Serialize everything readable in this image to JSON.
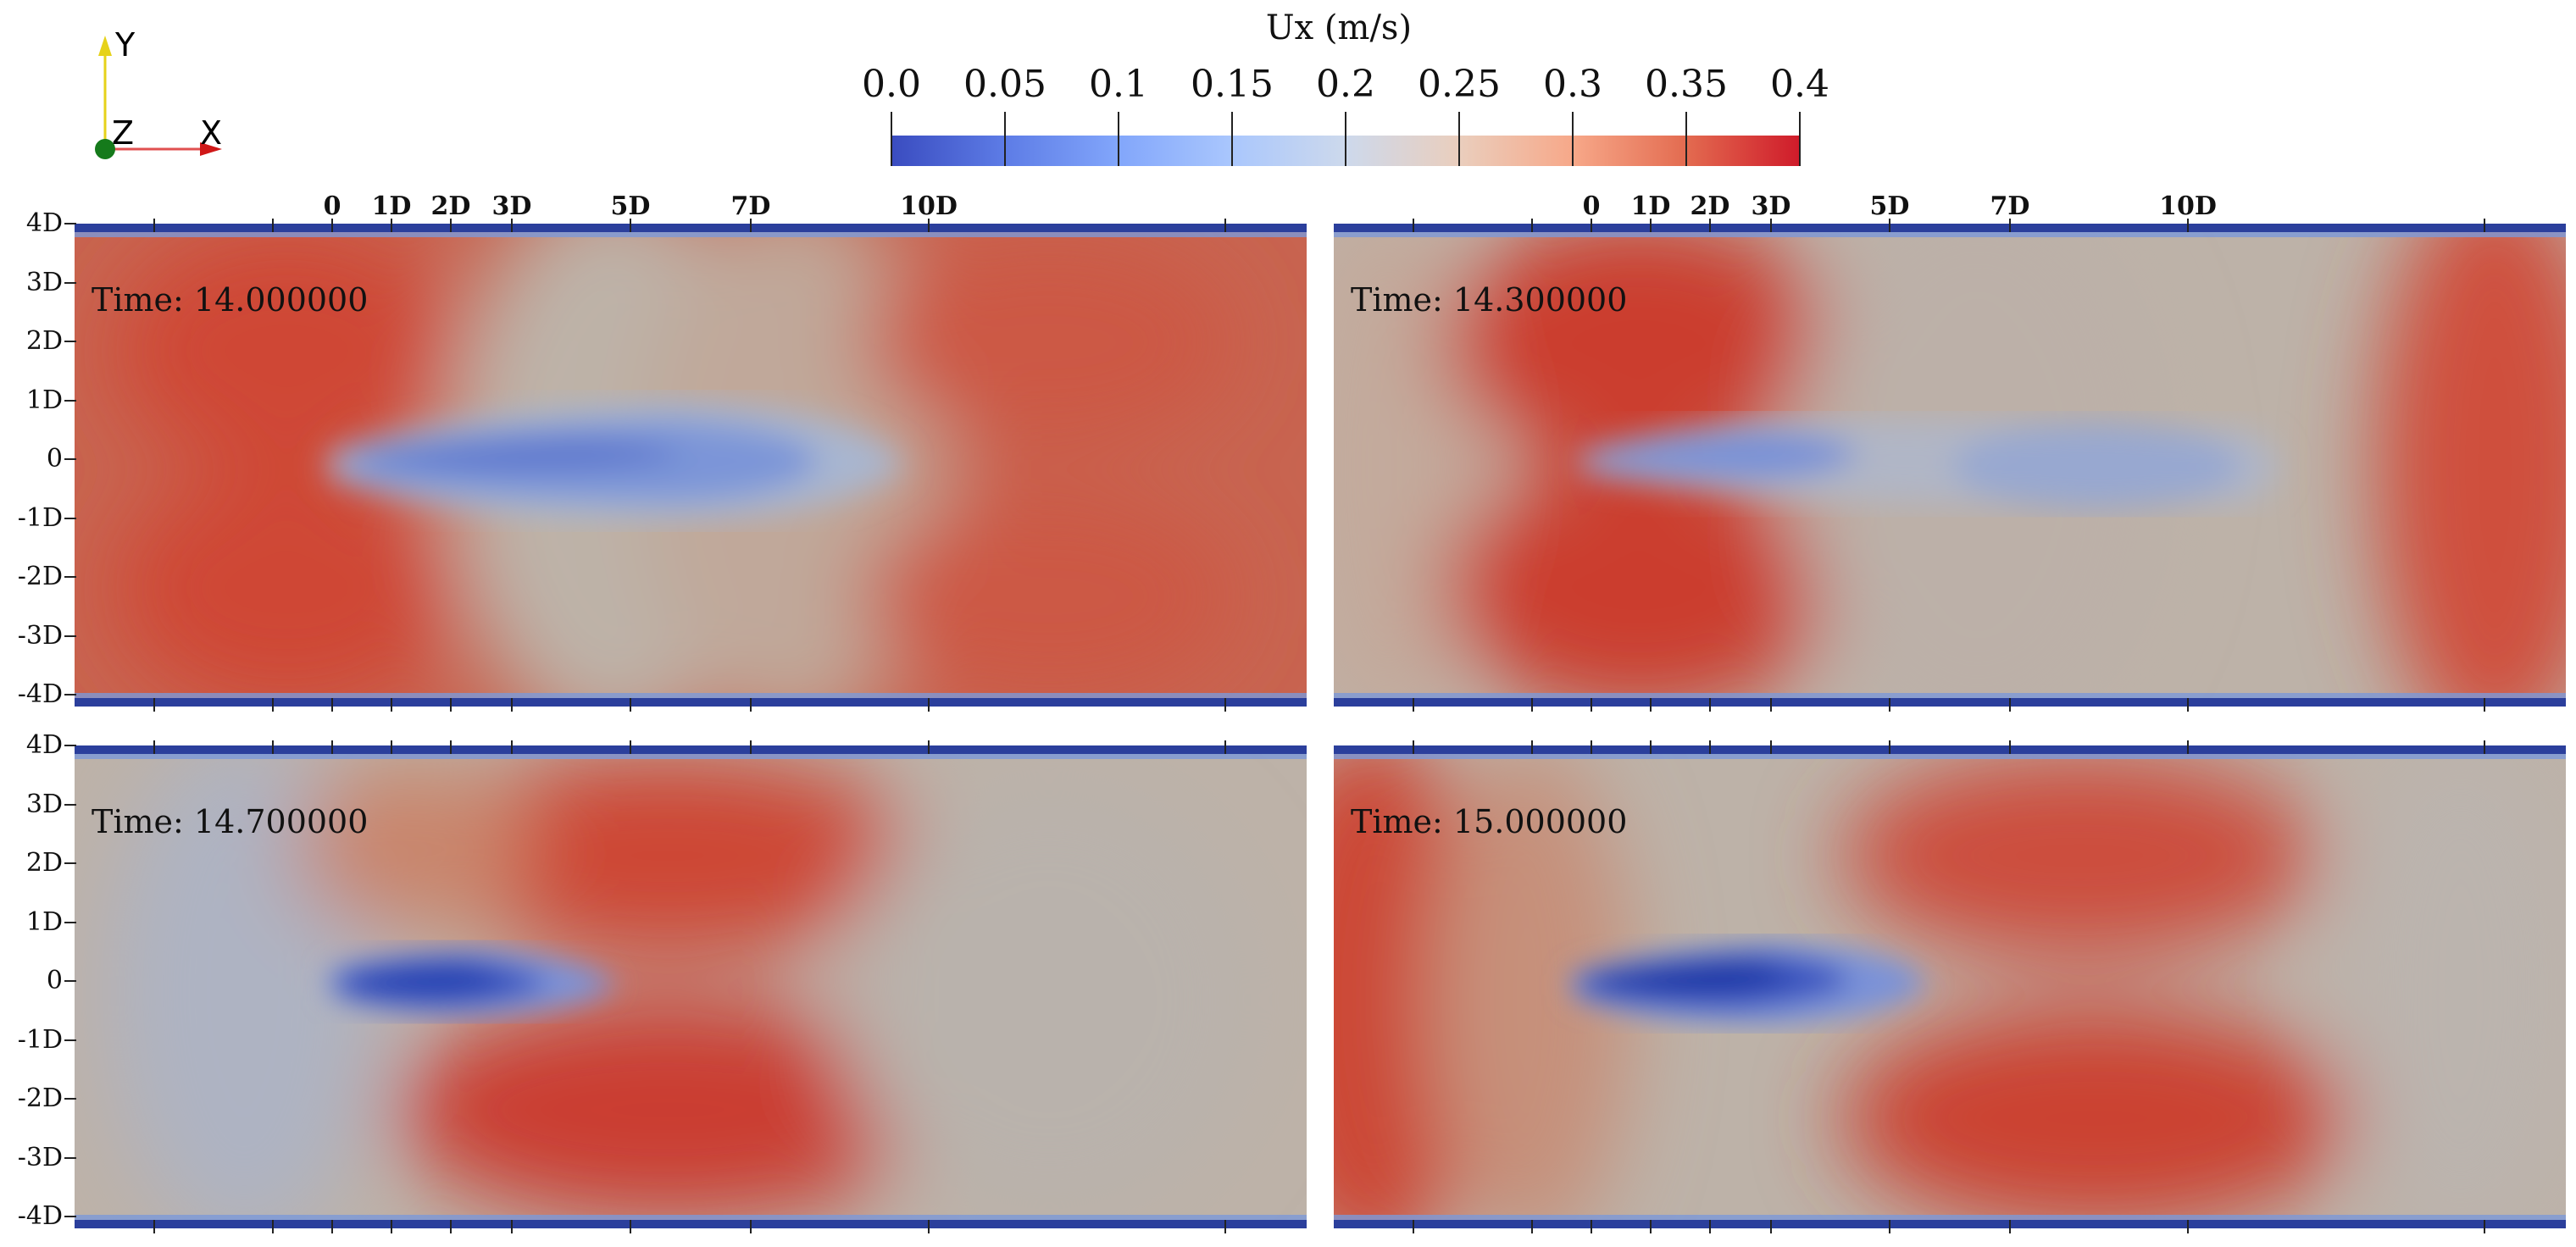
{
  "colorbar": {
    "title": "Ux (m/s)",
    "ticks": [
      "0.0",
      "0.05",
      "0.1",
      "0.15",
      "0.2",
      "0.25",
      "0.3",
      "0.35",
      "0.4"
    ],
    "range": [
      0.0,
      0.4
    ]
  },
  "axes_triad": {
    "y": "Y",
    "z": "Z",
    "x": "X"
  },
  "x_axis_labels": [
    "0",
    "1D",
    "2D",
    "3D",
    "5D",
    "7D",
    "10D"
  ],
  "y_axis_labels": [
    "4D",
    "3D",
    "2D",
    "1D",
    "0",
    "-1D",
    "-2D",
    "-3D",
    "-4D"
  ],
  "panels": [
    {
      "time": "Time: 14.000000"
    },
    {
      "time": "Time: 14.300000"
    },
    {
      "time": "Time: 14.700000"
    },
    {
      "time": "Time: 15.000000"
    }
  ],
  "colors": {
    "low": "#2f4ab8",
    "mid": "#bcb3aa",
    "high": "#cf4534",
    "wall": "#2b3f9c"
  }
}
